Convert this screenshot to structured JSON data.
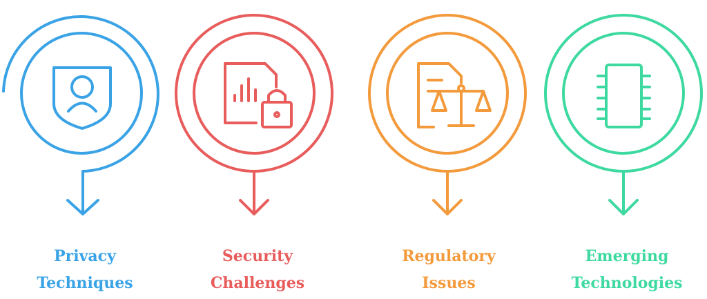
{
  "items": [
    {
      "color": "#3aa3e6",
      "icon": "shield-user-icon",
      "label_line1": "Privacy",
      "label_line2": "Techniques"
    },
    {
      "color": "#e85c5c",
      "icon": "document-chart-lock-icon",
      "label_line1": "Security",
      "label_line2": "Challenges"
    },
    {
      "color": "#f39a3c",
      "icon": "document-scales-icon",
      "label_line1": "Regulatory",
      "label_line2": "Issues"
    },
    {
      "color": "#3ed9a0",
      "icon": "microchip-icon",
      "label_line1": "Emerging",
      "label_line2": "Technologies"
    }
  ]
}
